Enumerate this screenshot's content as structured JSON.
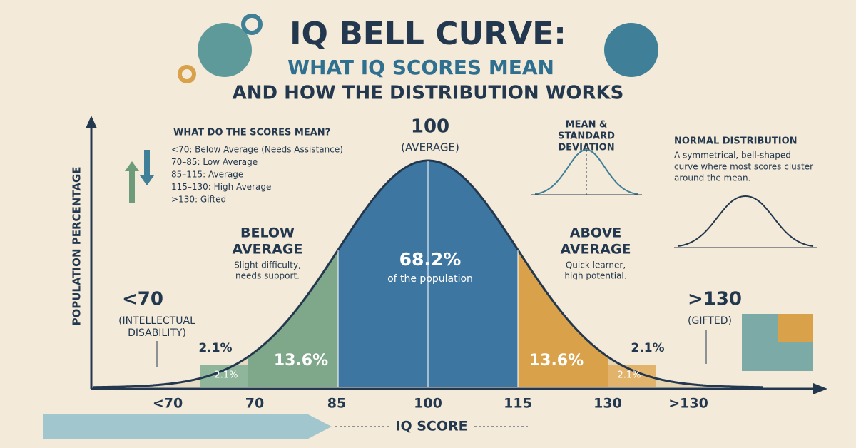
{
  "header": {
    "title": "IQ BELL CURVE:",
    "subtitle": "WHAT IQ SCORES MEAN",
    "subtitle2": "AND HOW THE DISTRIBUTION WORKS"
  },
  "axes": {
    "y_label": "POPULATION PERCENTAGE",
    "x_label": "IQ SCORE",
    "x_labels": [
      "<70",
      "70",
      "85",
      "100",
      "115",
      "130",
      ">130"
    ]
  },
  "key": {
    "title": "WHAT DO THE SCORES MEAN?",
    "items": [
      "<70: Below Average (Needs Assistance)",
      "70–85: Low Average",
      "85–115: Average",
      "115–130: High Average",
      ">130: Gifted"
    ]
  },
  "center": {
    "score": "100",
    "label": "(AVERAGE)",
    "percent": "68.2%",
    "note": "of the population"
  },
  "below": {
    "title_1": "BELOW",
    "title_2": "AVERAGE",
    "note_1": "Slight difficulty,",
    "note_2": "needs support.",
    "percent": "13.6%"
  },
  "above": {
    "title_1": "ABOVE",
    "title_2": "AVERAGE",
    "note_1": "Quick learner,",
    "note_2": "high potential.",
    "percent": "13.6%"
  },
  "low_tail": {
    "score": "<70",
    "label_1": "(INTELLECTUAL",
    "label_2": "DISABILITY)",
    "percent_outer": "2.1%",
    "percent_inner": "2.1%"
  },
  "high_tail": {
    "score": ">130",
    "label": "(GIFTED)",
    "percent_outer": "2.1%",
    "percent_inner": "2.1%"
  },
  "mean_sd": {
    "title_1": "MEAN &",
    "title_2": "STANDARD",
    "title_3": "DEVIATION"
  },
  "normal": {
    "title": "NORMAL DISTRIBUTION",
    "text_1": "A symmetrical, bell-shaped",
    "text_2": "curve where most scores cluster",
    "text_3": "around the mean."
  }
}
